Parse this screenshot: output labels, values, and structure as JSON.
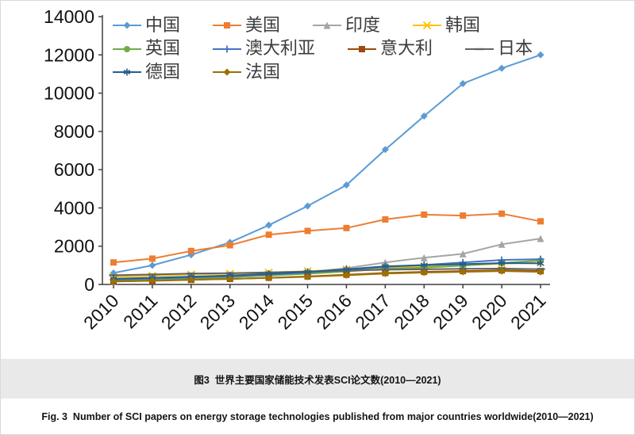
{
  "figure": {
    "caption_zh": "图3  世界主要国家储能技术发表SCI论文数(2010—2021)",
    "caption_en": "Fig. 3  Number of SCI papers on energy storage technologies published from major countries worldwide(2010—2021)"
  },
  "chart_data": {
    "type": "line",
    "title": "",
    "xlabel": "",
    "ylabel": "",
    "x": [
      2010,
      2011,
      2012,
      2013,
      2014,
      2015,
      2016,
      2017,
      2018,
      2019,
      2020,
      2021
    ],
    "ylim": [
      0,
      14000
    ],
    "yticks": [
      0,
      2000,
      4000,
      6000,
      8000,
      10000,
      12000,
      14000
    ],
    "grid": false,
    "legend_position": "inside-top-left",
    "series": [
      {
        "name": "中国",
        "color": "#5b9bd5",
        "marker": "diamond",
        "values": [
          600,
          1000,
          1550,
          2200,
          3100,
          4100,
          5200,
          7050,
          8800,
          10500,
          11300,
          12000
        ]
      },
      {
        "name": "美国",
        "color": "#ed7d31",
        "marker": "square",
        "values": [
          1150,
          1350,
          1750,
          2050,
          2600,
          2800,
          2950,
          3400,
          3650,
          3600,
          3700,
          3300
        ]
      },
      {
        "name": "印度",
        "color": "#a5a5a5",
        "marker": "triangle",
        "values": [
          150,
          200,
          280,
          380,
          500,
          650,
          850,
          1150,
          1400,
          1600,
          2100,
          2400
        ]
      },
      {
        "name": "韩国",
        "color": "#ffc000",
        "marker": "x",
        "values": [
          400,
          450,
          520,
          560,
          620,
          700,
          780,
          880,
          950,
          1000,
          1080,
          1150
        ]
      },
      {
        "name": "英国",
        "color": "#70ad47",
        "marker": "circle",
        "values": [
          230,
          270,
          320,
          380,
          470,
          560,
          680,
          820,
          880,
          980,
          1120,
          1250
        ]
      },
      {
        "name": "澳大利亚",
        "color": "#4472c4",
        "marker": "plus",
        "values": [
          260,
          310,
          370,
          430,
          520,
          620,
          760,
          920,
          1020,
          1150,
          1280,
          1320
        ]
      },
      {
        "name": "意大利",
        "color": "#9e480e",
        "marker": "square",
        "values": [
          160,
          190,
          240,
          290,
          350,
          420,
          510,
          600,
          660,
          700,
          740,
          700
        ]
      },
      {
        "name": "日本",
        "color": "#636363",
        "marker": "dash",
        "values": [
          480,
          520,
          570,
          590,
          630,
          670,
          720,
          770,
          790,
          820,
          830,
          800
        ]
      },
      {
        "name": "德国",
        "color": "#255e91",
        "marker": "asterisk",
        "values": [
          300,
          350,
          410,
          470,
          560,
          660,
          790,
          950,
          1010,
          1060,
          1120,
          1100
        ]
      },
      {
        "name": "法国",
        "color": "#997300",
        "marker": "diamond",
        "values": [
          170,
          200,
          250,
          290,
          340,
          400,
          480,
          570,
          620,
          660,
          700,
          660
        ]
      }
    ]
  }
}
